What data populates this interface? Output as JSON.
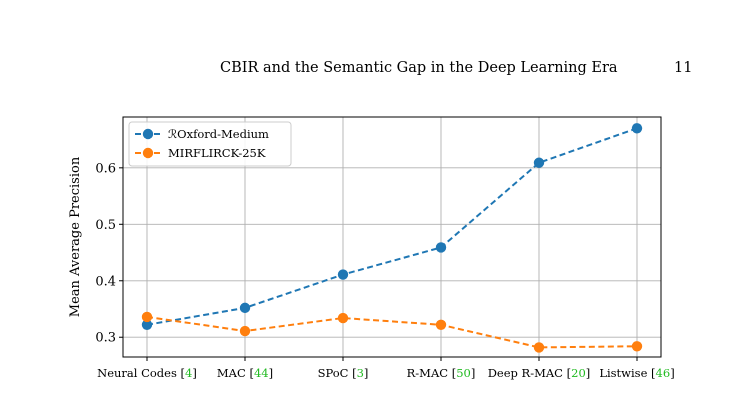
{
  "header": {
    "running_title": "CBIR and the Semantic Gap in the Deep Learning Era",
    "page_number": "11"
  },
  "chart_data": {
    "type": "line",
    "title": "",
    "xlabel": "",
    "ylabel": "Mean Average Precision",
    "categories": [
      {
        "text": "Neural Codes",
        "ref": "4"
      },
      {
        "text": "MAC",
        "ref": "44"
      },
      {
        "text": "SPoC",
        "ref": "3"
      },
      {
        "text": "R-MAC",
        "ref": "50"
      },
      {
        "text": "Deep R-MAC",
        "ref": "20"
      },
      {
        "text": "Listwise",
        "ref": "46"
      }
    ],
    "series": [
      {
        "name": "ℛOxford-Medium",
        "values": [
          0.322,
          0.352,
          0.411,
          0.459,
          0.609,
          0.67
        ],
        "color": "#1f77b4"
      },
      {
        "name": "MIRFLIRCK-25K",
        "values": [
          0.336,
          0.311,
          0.334,
          0.322,
          0.282,
          0.284
        ],
        "color": "#ff7f0e"
      }
    ],
    "ylim": [
      0.265,
      0.69
    ],
    "yticks": [
      "0.3",
      "0.4",
      "0.5",
      "0.6"
    ],
    "grid": true,
    "line_style": "dashed",
    "marker": "circle",
    "legend_position": "top-left"
  }
}
